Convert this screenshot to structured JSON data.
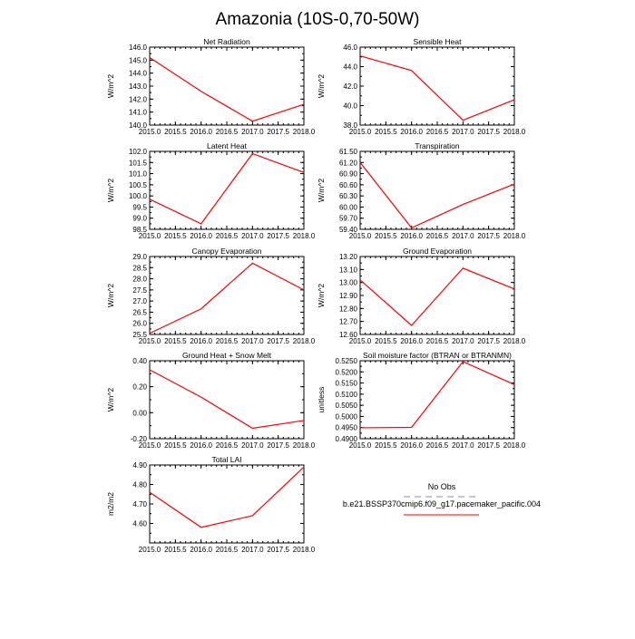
{
  "figure_title": "Amazonia (10S-0,70-50W)",
  "colors": {
    "model_line": "#ff0000",
    "obs_line": "#b0b0d8",
    "axis": "#000000"
  },
  "legend": {
    "entries": [
      {
        "label": "No Obs",
        "style": "dashed",
        "color": "#b0b0d8"
      },
      {
        "label": "b.e21.BSSP370cmip6.f09_g17.pacemaker_pacific.004",
        "style": "solid",
        "color": "#ff0000"
      }
    ]
  },
  "chart_data": [
    {
      "type": "line",
      "title": "Net Radiation",
      "ylabel": "W/m^2",
      "x": [
        2015.0,
        2016.0,
        2017.0,
        2018.0
      ],
      "values": [
        145.2,
        142.6,
        140.3,
        141.6
      ],
      "xlim": [
        2015.0,
        2018.0
      ],
      "ylim": [
        140.0,
        146.0
      ],
      "xticks": [
        "2015.0",
        "2015.5",
        "2016.0",
        "2016.5",
        "2017.0",
        "2017.5",
        "2018.0"
      ],
      "yticks": [
        "140.0",
        "141.0",
        "142.0",
        "143.0",
        "144.0",
        "145.0",
        "146.0"
      ]
    },
    {
      "type": "line",
      "title": "Sensible Heat",
      "ylabel": "W/m^2",
      "x": [
        2015.0,
        2016.0,
        2017.0,
        2018.0
      ],
      "values": [
        45.1,
        43.6,
        38.5,
        40.6
      ],
      "xlim": [
        2015.0,
        2018.0
      ],
      "ylim": [
        38.0,
        46.0
      ],
      "xticks": [
        "2015.0",
        "2015.5",
        "2016.0",
        "2016.5",
        "2017.0",
        "2017.5",
        "2018.0"
      ],
      "yticks": [
        "38.0",
        "40.0",
        "42.0",
        "44.0",
        "46.0"
      ]
    },
    {
      "type": "line",
      "title": "Latent Heat",
      "ylabel": "W/m^2",
      "x": [
        2015.0,
        2016.0,
        2017.0,
        2018.0
      ],
      "values": [
        99.85,
        98.75,
        101.9,
        101.05
      ],
      "xlim": [
        2015.0,
        2018.0
      ],
      "ylim": [
        98.5,
        102.0
      ],
      "xticks": [
        "2015.0",
        "2015.5",
        "2016.0",
        "2016.5",
        "2017.0",
        "2017.5",
        "2018.0"
      ],
      "yticks": [
        "98.5",
        "99.0",
        "99.5",
        "100.0",
        "100.5",
        "101.0",
        "101.5",
        "102.0"
      ]
    },
    {
      "type": "line",
      "title": "Transpiration",
      "ylabel": "W/m^2",
      "x": [
        2015.0,
        2016.0,
        2017.0,
        2018.0
      ],
      "values": [
        61.2,
        59.44,
        60.07,
        60.62
      ],
      "xlim": [
        2015.0,
        2018.0
      ],
      "ylim": [
        59.4,
        61.5
      ],
      "xticks": [
        "2015.0",
        "2015.5",
        "2016.0",
        "2016.5",
        "2017.0",
        "2017.5",
        "2018.0"
      ],
      "yticks": [
        "59.40",
        "59.70",
        "60.00",
        "60.30",
        "60.60",
        "60.90",
        "61.20",
        "61.50"
      ]
    },
    {
      "type": "line",
      "title": "Canopy Evaporation",
      "ylabel": "W/m^2",
      "x": [
        2015.0,
        2016.0,
        2017.0,
        2018.0
      ],
      "values": [
        25.55,
        26.65,
        28.7,
        27.5
      ],
      "xlim": [
        2015.0,
        2018.0
      ],
      "ylim": [
        25.5,
        29.0
      ],
      "xticks": [
        "2015.0",
        "2015.5",
        "2016.0",
        "2016.5",
        "2017.0",
        "2017.5",
        "2018.0"
      ],
      "yticks": [
        "25.5",
        "26.0",
        "26.5",
        "27.0",
        "27.5",
        "28.0",
        "28.5",
        "29.0"
      ]
    },
    {
      "type": "line",
      "title": "Ground Evaporation",
      "ylabel": "W/m^2",
      "x": [
        2015.0,
        2016.0,
        2017.0,
        2018.0
      ],
      "values": [
        13.02,
        12.67,
        13.11,
        12.95
      ],
      "xlim": [
        2015.0,
        2018.0
      ],
      "ylim": [
        12.6,
        13.2
      ],
      "xticks": [
        "2015.0",
        "2015.5",
        "2016.0",
        "2016.5",
        "2017.0",
        "2017.5",
        "2018.0"
      ],
      "yticks": [
        "12.60",
        "12.70",
        "12.80",
        "12.90",
        "13.00",
        "13.10",
        "13.20"
      ]
    },
    {
      "type": "line",
      "title": "Ground Heat + Snow Melt",
      "ylabel": "W/m^2",
      "x": [
        2015.0,
        2016.0,
        2017.0,
        2018.0
      ],
      "values": [
        0.33,
        0.12,
        -0.12,
        -0.06
      ],
      "xlim": [
        2015.0,
        2018.0
      ],
      "ylim": [
        -0.2,
        0.4
      ],
      "xticks": [
        "2015.0",
        "2015.5",
        "2016.0",
        "2016.5",
        "2017.0",
        "2017.5",
        "2018.0"
      ],
      "yticks": [
        "-0.20",
        "0.00",
        "0.20",
        "0.40"
      ],
      "yminor_step": 0.1
    },
    {
      "type": "line",
      "title": "Soil moisture factor (BTRAN or BTRANMN)",
      "ylabel": "unitless",
      "x": [
        2015.0,
        2016.0,
        2017.0,
        2018.0
      ],
      "values": [
        0.4949,
        0.4951,
        0.5246,
        0.5143
      ],
      "xlim": [
        2015.0,
        2018.0
      ],
      "ylim": [
        0.49,
        0.525
      ],
      "xticks": [
        "2015.0",
        "2015.5",
        "2016.0",
        "2016.5",
        "2017.0",
        "2017.5",
        "2018.0"
      ],
      "yticks": [
        "0.4900",
        "0.4950",
        "0.5000",
        "0.5050",
        "0.5100",
        "0.5150",
        "0.5200",
        "0.5250"
      ]
    },
    {
      "type": "line",
      "title": "Total LAI",
      "ylabel": "m2/m2",
      "x": [
        2015.0,
        2016.0,
        2017.0,
        2018.0
      ],
      "values": [
        4.76,
        4.58,
        4.64,
        4.89
      ],
      "xlim": [
        2015.0,
        2018.0
      ],
      "ylim": [
        4.5,
        4.9
      ],
      "xticks": [
        "2015.0",
        "2015.5",
        "2016.0",
        "2016.5",
        "2017.0",
        "2017.5",
        "2018.0"
      ],
      "yticks": [
        "4.60",
        "4.70",
        "4.80",
        "4.90"
      ],
      "yminor_step": 0.05
    }
  ]
}
